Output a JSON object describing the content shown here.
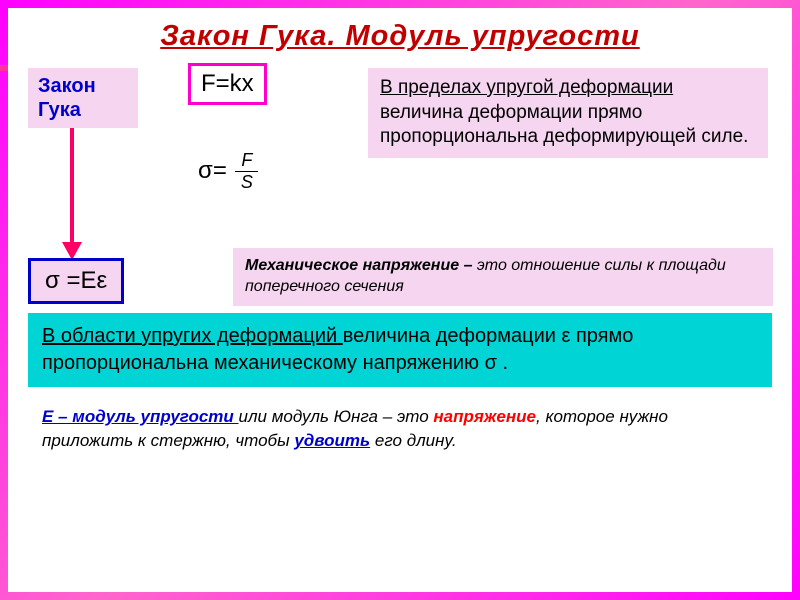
{
  "colors": {
    "gradient_start": "#ff00ff",
    "gradient_end": "#ff66cc",
    "title_color": "#c00000",
    "label_bg": "#f5d5f0",
    "label_text": "#0000cc",
    "formula_border": "#ff00cc",
    "sigma_border": "#0000cc",
    "arrow_color": "#ff3399",
    "arrow_down_color": "#ff0066",
    "cyan_bg": "#00d4d4",
    "youngs_blue": "#0000cc",
    "youngs_red": "#ff0000"
  },
  "title": "Закон Гука.     Модуль упругости",
  "hooke_label_l1": "Закон",
  "hooke_label_l2": "Гука",
  "formula_fkx": "F=kx",
  "formula_sigma_eq": "σ=",
  "formula_frac_top": "F",
  "formula_frac_bot": "S",
  "formula_sigma_ee": "σ =Eε",
  "def_elastic_underline": "В пределах упругой деформации ",
  "def_elastic_rest": "величина деформации прямо пропорциональна деформирующей силе.",
  "def_mech_lead": "Механическое напряжение – ",
  "def_mech_rest": "это отношение силы к площади поперечного сечения",
  "cyan_underline": "В области упругих деформаций ",
  "cyan_rest": "величина деформации ε прямо пропорциональна механическому напряжению σ .",
  "youngs_lead": "Е – модуль упругости ",
  "youngs_mid1": "или модуль Юнга – это ",
  "youngs_stress": "напряжение",
  "youngs_mid2": ", которое нужно приложить к стержню, чтобы ",
  "youngs_double": "удвоить",
  "youngs_end": " его длину.",
  "fonts": {
    "title_size": 29,
    "label_size": 20,
    "formula_size": 24,
    "def_size": 19,
    "mech_size": 16,
    "cyan_size": 20,
    "youngs_size": 17
  }
}
